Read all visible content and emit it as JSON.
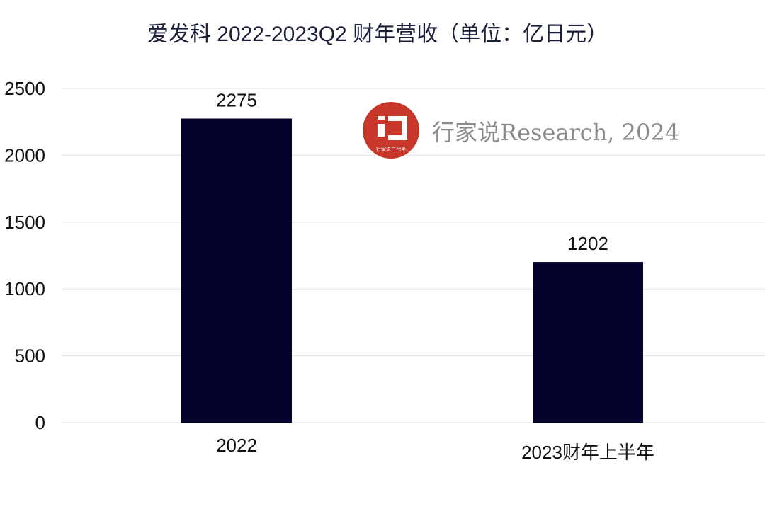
{
  "chart_data": {
    "type": "bar",
    "title": "爱发科 2022-2023Q2 财年营收（单位：亿日元）",
    "categories": [
      "2022",
      "2023财年上半年"
    ],
    "values": [
      2275,
      1202
    ],
    "data_labels": [
      "2275",
      "1202"
    ],
    "xlabel": "",
    "ylabel": "",
    "ylim": [
      0,
      2500
    ],
    "yticks": [
      0,
      500,
      1000,
      1500,
      2000,
      2500
    ],
    "grid": true,
    "legend": "none",
    "bar_color": "#03032d",
    "grid_color": "#e6e6e6"
  },
  "watermark": {
    "logo_text": "行家说三代半",
    "text": "行家说Research, 2024",
    "logo_color": "#c8382a"
  }
}
